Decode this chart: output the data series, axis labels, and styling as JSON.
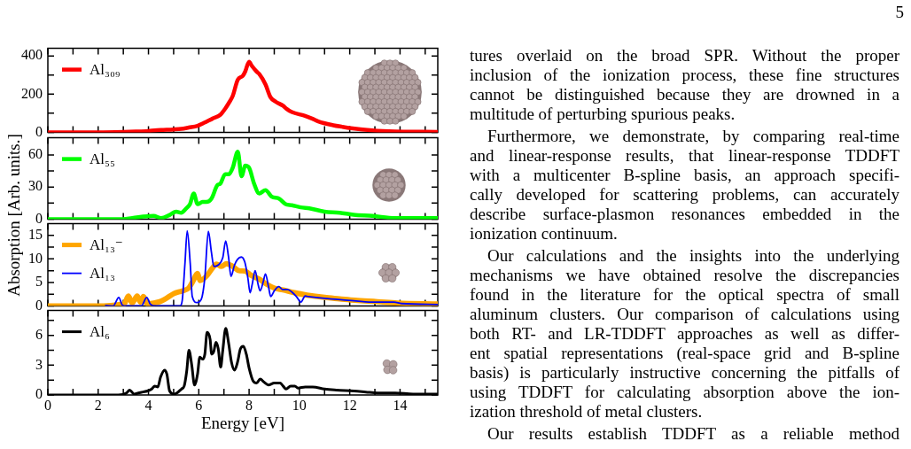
{
  "chart_data": [
    {
      "type": "line",
      "legend": "top left",
      "tick_labels": "y",
      "xlim": [
        0,
        15.5
      ],
      "xticks": [
        0,
        {
          "value": 1,
          "label": null
        },
        2,
        {
          "value": 3,
          "label": null
        },
        4,
        {
          "value": 5,
          "label": null
        },
        6,
        {
          "value": 7,
          "label": null
        },
        8,
        {
          "value": 9,
          "label": null
        },
        10,
        {
          "value": 11,
          "label": null
        },
        12,
        {
          "value": 13,
          "label": null
        },
        14,
        {
          "value": 15,
          "label": null
        }
      ],
      "ylim": [
        0,
        440
      ],
      "yticks": [
        0,
        {
          "value": 100,
          "label": null
        },
        200,
        {
          "value": 300,
          "label": null
        },
        400
      ],
      "series": [
        {
          "name": "Al₃₀₉",
          "color": "#ff0000",
          "x": [
            0,
            1,
            2,
            3,
            3.5,
            4,
            4.25,
            4.5,
            5,
            5.3,
            5.6,
            5.95,
            6.2,
            6.55,
            6.85,
            7.05,
            7.2,
            7.35,
            7.55,
            7.75,
            7.85,
            8.0,
            8.1,
            8.3,
            8.4,
            8.65,
            8.85,
            9.05,
            9.35,
            9.5,
            9.7,
            10.2,
            10.5,
            10.75,
            11.35,
            11.7,
            12.05,
            12.9,
            13.8,
            14.5,
            15.5
          ],
          "values": [
            0,
            0,
            0,
            2,
            4,
            7,
            10,
            12,
            15,
            18,
            25,
            34,
            49,
            72,
            91,
            124,
            155,
            191,
            276,
            296,
            320,
            370,
            350,
            318,
            306,
            251,
            184,
            161,
            139,
            122,
            106,
            87,
            72,
            57,
            37,
            29,
            22,
            10,
            4,
            3,
            2
          ]
        }
      ]
    },
    {
      "type": "line",
      "legend": "top left",
      "tick_labels": "y",
      "ylabel": "Absorption [Arb. units.]",
      "xlim": [
        0,
        15.5
      ],
      "xticks": [
        0,
        {
          "value": 1,
          "label": null
        },
        2,
        {
          "value": 3,
          "label": null
        },
        4,
        {
          "value": 5,
          "label": null
        },
        6,
        {
          "value": 7,
          "label": null
        },
        8,
        {
          "value": 9,
          "label": null
        },
        10,
        {
          "value": 11,
          "label": null
        },
        12,
        {
          "value": 13,
          "label": null
        },
        14,
        {
          "value": 15,
          "label": null
        }
      ],
      "ylim": [
        0,
        76
      ],
      "yticks": [
        0,
        {
          "value": 15,
          "label": null
        },
        30,
        {
          "value": 45,
          "label": null
        },
        60
      ],
      "series": [
        {
          "name": "Al₅₅",
          "color": "#00ff00",
          "x": [
            0,
            1,
            2,
            3,
            3.35,
            4.2,
            4.5,
            4.85,
            5.1,
            5.3,
            5.5,
            5.65,
            5.8,
            5.95,
            6.15,
            6.3,
            6.5,
            6.75,
            6.85,
            7.05,
            7.2,
            7.35,
            7.55,
            7.7,
            7.85,
            8.0,
            8.2,
            8.4,
            8.65,
            8.9,
            9.2,
            9.45,
            9.7,
            10.05,
            10.4,
            11.0,
            11.6,
            12.15,
            12.9,
            13.8,
            14.6,
            15.5
          ],
          "values": [
            0,
            0,
            0,
            0,
            1,
            3,
            1,
            4,
            7,
            6,
            10,
            14,
            24,
            14,
            16,
            16,
            19,
            32,
            33,
            42,
            42,
            48,
            63,
            40,
            50,
            48,
            33,
            24,
            27,
            21,
            19,
            14,
            13,
            11,
            10,
            7,
            6,
            4,
            3,
            1,
            1,
            1
          ]
        }
      ]
    },
    {
      "type": "line",
      "legend": "top left",
      "tick_labels": "y",
      "xlim": [
        0,
        15.5
      ],
      "xticks": [
        0,
        {
          "value": 1,
          "label": null
        },
        2,
        {
          "value": 3,
          "label": null
        },
        4,
        {
          "value": 5,
          "label": null
        },
        6,
        {
          "value": 7,
          "label": null
        },
        8,
        {
          "value": 9,
          "label": null
        },
        10,
        {
          "value": 11,
          "label": null
        },
        12,
        {
          "value": 13,
          "label": null
        },
        14,
        {
          "value": 15,
          "label": null
        }
      ],
      "ylim": [
        0,
        17.5
      ],
      "yticks": [
        0,
        {
          "value": 2.5,
          "label": null
        },
        5,
        {
          "value": 7.5,
          "label": null
        },
        10,
        {
          "value": 12.5,
          "label": null
        },
        15
      ],
      "series": [
        {
          "name": "Al₁₃⁻",
          "color": "#ffa500",
          "x": [
            0,
            1,
            2,
            2.5,
            2.9,
            3.05,
            3.2,
            3.35,
            3.55,
            3.68,
            3.8,
            3.95,
            4.2,
            4.45,
            4.65,
            5.0,
            5.35,
            5.6,
            5.75,
            5.95,
            6.05,
            6.3,
            6.55,
            6.7,
            6.9,
            7.1,
            7.35,
            7.6,
            7.85,
            8.05,
            8.4,
            8.7,
            9.0,
            9.35,
            9.8,
            10.3,
            11.0,
            11.6,
            12.2,
            13.1,
            13.9,
            15.5
          ],
          "values": [
            0,
            0,
            0,
            0.1,
            0.3,
            0.5,
            2.1,
            0.6,
            2.1,
            0.8,
            2.0,
            0.4,
            0.6,
            0.9,
            1.4,
            2.6,
            3.2,
            3.8,
            5.1,
            6.9,
            5.4,
            6.3,
            8.1,
            8.9,
            8.4,
            9.0,
            8.4,
            7.5,
            7.4,
            6.6,
            5.7,
            4.6,
            3.8,
            3.4,
            2.8,
            2.3,
            1.8,
            1.5,
            1.2,
            0.9,
            0.6,
            0.4
          ]
        },
        {
          "name": "Al₁₃",
          "color": "#0000ff",
          "x": [
            2.3,
            2.6,
            2.82,
            2.96,
            3.1,
            3.72,
            3.93,
            4.07,
            4.3,
            5.25,
            5.34,
            5.45,
            5.54,
            5.66,
            5.74,
            5.93,
            6.1,
            6.24,
            6.38,
            6.5,
            6.6,
            6.77,
            6.95,
            7.07,
            7.18,
            7.28,
            7.42,
            7.54,
            7.69,
            7.83,
            7.95,
            8.04,
            8.12,
            8.24,
            8.36,
            8.44,
            8.56,
            8.65,
            8.77,
            8.86,
            9.0,
            9.18,
            9.33,
            9.53,
            9.71,
            9.88,
            10.06,
            10.23,
            10.35,
            11.0,
            11.94,
            12.88,
            13.76,
            14.05,
            15.5
          ],
          "values": [
            0.1,
            0,
            1.8,
            0.2,
            0,
            0,
            1.8,
            0.4,
            0,
            0,
            1.1,
            9,
            16,
            9,
            2.0,
            0.7,
            1.4,
            6.0,
            15.9,
            11.5,
            8.4,
            8.7,
            10.2,
            13.8,
            10.5,
            6.3,
            8.7,
            9.9,
            10.4,
            9.3,
            6.0,
            2.8,
            4.5,
            7.5,
            4.5,
            3.2,
            5.1,
            6.8,
            4.1,
            2.0,
            3.2,
            4.1,
            3.5,
            3.5,
            2.9,
            2.0,
            0.8,
            2.1,
            2.0,
            1.6,
            1.2,
            0.8,
            0.8,
            0.5,
            0.3
          ]
        }
      ]
    },
    {
      "type": "line",
      "legend": "top left",
      "xlabel": "Energy [eV]",
      "xlim": [
        0,
        15.5
      ],
      "xticks": [
        0,
        {
          "value": 1,
          "label": null
        },
        2,
        {
          "value": 3,
          "label": null
        },
        4,
        {
          "value": 5,
          "label": null
        },
        6,
        {
          "value": 7,
          "label": null
        },
        8,
        {
          "value": 9,
          "label": null
        },
        10,
        {
          "value": 11,
          "label": null
        },
        12,
        {
          "value": 13,
          "label": null
        },
        14,
        {
          "value": 15,
          "label": null
        }
      ],
      "ylim": [
        0,
        8.5
      ],
      "yticks": [
        0,
        {
          "value": 1.5,
          "label": null
        },
        3,
        {
          "value": 4.5,
          "label": null
        },
        6,
        {
          "value": 7.5,
          "label": null
        }
      ],
      "series": [
        {
          "name": "Al₆",
          "color": "#000000",
          "x": [
            0,
            1,
            2,
            2.8,
            3.13,
            3.25,
            3.43,
            3.6,
            3.78,
            3.96,
            4.13,
            4.25,
            4.37,
            4.48,
            4.64,
            4.73,
            4.84,
            5.01,
            5.13,
            5.31,
            5.42,
            5.52,
            5.61,
            5.72,
            5.83,
            5.95,
            6.04,
            6.16,
            6.24,
            6.33,
            6.45,
            6.51,
            6.6,
            6.68,
            6.77,
            6.87,
            6.95,
            7.07,
            7.18,
            7.3,
            7.42,
            7.54,
            7.65,
            7.77,
            7.89,
            8.0,
            8.16,
            8.3,
            8.44,
            8.59,
            8.77,
            9.0,
            9.24,
            9.35,
            9.47,
            9.65,
            9.82,
            9.94,
            10.23,
            10.53,
            11.0,
            11.47,
            12.17,
            12.64,
            13.11,
            13.81,
            14.52,
            15.5
          ],
          "values": [
            0,
            0,
            0,
            0,
            0.2,
            0.5,
            0.1,
            0.2,
            0.3,
            0.4,
            0.6,
            0.9,
            0.8,
            1.8,
            2.5,
            2.1,
            0.4,
            0.1,
            0.2,
            0.6,
            0.9,
            2.4,
            4.5,
            3.0,
            1.0,
            2.1,
            3.8,
            3.6,
            4.1,
            6.3,
            5.6,
            4.1,
            4.4,
            5.3,
            4.7,
            2.8,
            4.4,
            6.7,
            5.3,
            3.3,
            2.5,
            3.3,
            4.6,
            4.9,
            4.1,
            2.7,
            1.4,
            1.2,
            1.6,
            1.3,
            1.0,
            1.2,
            1.2,
            0.9,
            0.6,
            0.9,
            0.9,
            0.7,
            0.8,
            0.8,
            0.6,
            0.5,
            0.4,
            0.3,
            0.2,
            0.2,
            0.1,
            0.1
          ]
        }
      ]
    },
    {
      "type": "other",
      "annotations": [
        "5",
        "tures overlaid on the broad SPR. Without the proper\ninclusion of the ionization process, these fine structures\ncannot be distinguished because they are drowned in a\nmultitude of perturbing spurious peaks.",
        "Furthermore, we demonstrate, by comparing real-time\nand linear-response results, that linear-response TDDFT\nwith a multicenter B-spline basis, an approach specifi-\ncally developed for scattering problems, can accurately\ndescribe surface-plasmon resonances embedded in the\nionization continuum.",
        "Our calculations and the insights into the underlying\nmechanisms we have obtained resolve the discrepancies\nfound in the literature for the optical spectra of small\naluminum clusters. Our comparison of calculations using\nboth RT- and LR-TDDFT approaches as well as differ-\nent spatial representations (real-space grid and B-spline\nbasis) is particularly instructive concerning the pitfalls of\nusing TDDFT for calculating absorption above the ion-\nization threshold of metal clusters.",
        "Our results establish TDDFT as a reliable method"
      ]
    }
  ]
}
